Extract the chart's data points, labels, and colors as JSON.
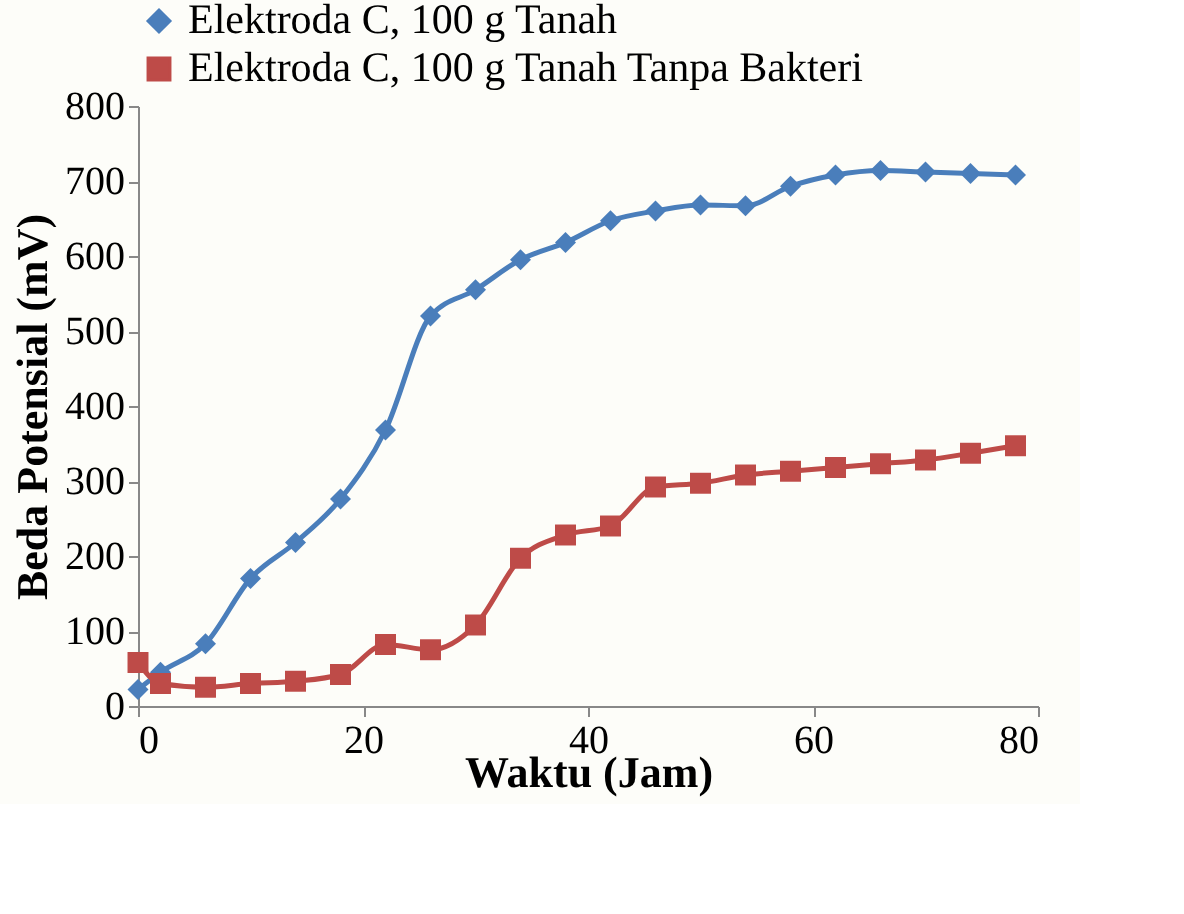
{
  "chart_data": {
    "type": "line",
    "xlabel": "Waktu (Jam)",
    "ylabel": "Beda Potensial (mV)",
    "x": [
      0,
      2,
      6,
      10,
      14,
      18,
      22,
      26,
      30,
      34,
      38,
      42,
      46,
      50,
      54,
      58,
      62,
      66,
      70,
      74,
      78
    ],
    "series": [
      {
        "name": "Elektroda C, 100 g Tanah",
        "color": "#4a7ebb",
        "marker": "diamond",
        "values": [
          22,
          45,
          83,
          170,
          218,
          276,
          368,
          520,
          555,
          595,
          618,
          647,
          660,
          668,
          667,
          693,
          708,
          714,
          712,
          710,
          708
        ]
      },
      {
        "name": "Elektroda C, 100 g Tanah Tanpa Bakteri",
        "color": "#be4b48",
        "marker": "square",
        "values": [
          58,
          30,
          25,
          30,
          33,
          42,
          82,
          75,
          108,
          197,
          228,
          240,
          292,
          297,
          308,
          313,
          318,
          323,
          328,
          337,
          347
        ]
      }
    ],
    "xlim": [
      0,
      80
    ],
    "xticks": [
      0,
      20,
      40,
      60,
      80
    ],
    "ylim": [
      0,
      800
    ],
    "yticks": [
      0,
      100,
      200,
      300,
      400,
      500,
      600,
      700,
      800
    ],
    "grid": false,
    "legend": "top",
    "line_style": "solid"
  }
}
